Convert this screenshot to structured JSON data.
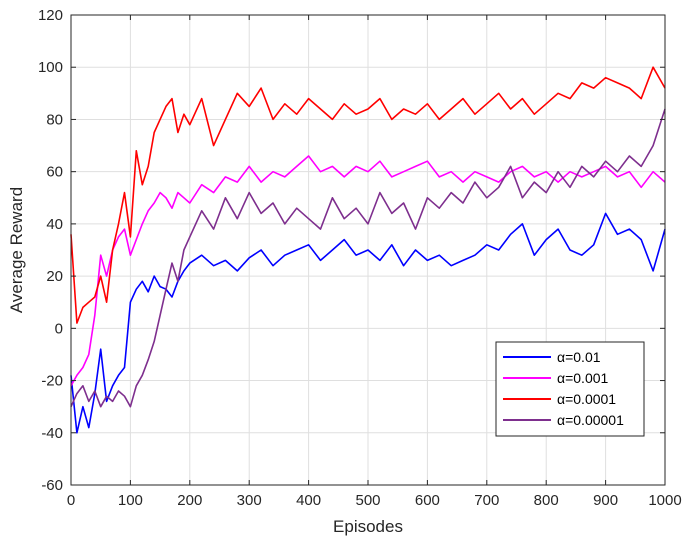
{
  "chart_data": {
    "type": "line",
    "xlabel": "Episodes",
    "ylabel": "Average Reward",
    "xlim": [
      0,
      1000
    ],
    "ylim": [
      -60,
      120
    ],
    "xticks": [
      0,
      100,
      200,
      300,
      400,
      500,
      600,
      700,
      800,
      900,
      1000
    ],
    "yticks": [
      -60,
      -40,
      -20,
      0,
      20,
      40,
      60,
      80,
      100,
      120
    ],
    "grid": true,
    "legend_position": "bottom-right",
    "series": [
      {
        "name": "α=0.01",
        "color": "#0000ff",
        "x": [
          0,
          10,
          20,
          30,
          40,
          50,
          60,
          70,
          80,
          90,
          100,
          110,
          120,
          130,
          140,
          150,
          160,
          170,
          180,
          190,
          200,
          220,
          240,
          260,
          280,
          300,
          320,
          340,
          360,
          380,
          400,
          420,
          440,
          460,
          480,
          500,
          520,
          540,
          560,
          580,
          600,
          620,
          640,
          660,
          680,
          700,
          720,
          740,
          760,
          780,
          800,
          820,
          840,
          860,
          880,
          900,
          920,
          940,
          960,
          980,
          1000
        ],
        "y": [
          -18,
          -40,
          -30,
          -38,
          -25,
          -8,
          -28,
          -22,
          -18,
          -15,
          10,
          15,
          18,
          14,
          20,
          16,
          15,
          12,
          18,
          22,
          25,
          28,
          24,
          26,
          22,
          27,
          30,
          24,
          28,
          30,
          32,
          26,
          30,
          34,
          28,
          30,
          26,
          32,
          24,
          30,
          26,
          28,
          24,
          26,
          28,
          32,
          30,
          36,
          40,
          28,
          34,
          38,
          30,
          28,
          32,
          44,
          36,
          38,
          34,
          22,
          38
        ]
      },
      {
        "name": "α=0.001",
        "color": "#ff00ff",
        "x": [
          0,
          10,
          20,
          30,
          40,
          50,
          60,
          70,
          80,
          90,
          100,
          110,
          120,
          130,
          140,
          150,
          160,
          170,
          180,
          190,
          200,
          220,
          240,
          260,
          280,
          300,
          320,
          340,
          360,
          380,
          400,
          420,
          440,
          460,
          480,
          500,
          520,
          540,
          560,
          580,
          600,
          620,
          640,
          660,
          680,
          700,
          720,
          740,
          760,
          780,
          800,
          820,
          840,
          860,
          880,
          900,
          920,
          940,
          960,
          980,
          1000
        ],
        "y": [
          -22,
          -18,
          -15,
          -10,
          5,
          28,
          20,
          30,
          35,
          38,
          28,
          34,
          40,
          45,
          48,
          52,
          50,
          46,
          52,
          50,
          48,
          55,
          52,
          58,
          56,
          62,
          56,
          60,
          58,
          62,
          66,
          60,
          62,
          58,
          62,
          60,
          64,
          58,
          60,
          62,
          64,
          58,
          60,
          56,
          60,
          58,
          56,
          60,
          62,
          58,
          60,
          56,
          60,
          58,
          60,
          62,
          58,
          60,
          54,
          60,
          56
        ]
      },
      {
        "name": "α=0.0001",
        "color": "#ff0000",
        "x": [
          0,
          10,
          20,
          30,
          40,
          50,
          60,
          70,
          80,
          90,
          100,
          110,
          120,
          130,
          140,
          150,
          160,
          170,
          180,
          190,
          200,
          220,
          240,
          260,
          280,
          300,
          320,
          340,
          360,
          380,
          400,
          420,
          440,
          460,
          480,
          500,
          520,
          540,
          560,
          580,
          600,
          620,
          640,
          660,
          680,
          700,
          720,
          740,
          760,
          780,
          800,
          820,
          840,
          860,
          880,
          900,
          920,
          940,
          960,
          980,
          1000
        ],
        "y": [
          36,
          2,
          8,
          10,
          12,
          20,
          10,
          30,
          40,
          52,
          35,
          68,
          55,
          62,
          75,
          80,
          85,
          88,
          75,
          82,
          78,
          88,
          70,
          80,
          90,
          85,
          92,
          80,
          86,
          82,
          88,
          84,
          80,
          86,
          82,
          84,
          88,
          80,
          84,
          82,
          86,
          80,
          84,
          88,
          82,
          86,
          90,
          84,
          88,
          82,
          86,
          90,
          88,
          94,
          92,
          96,
          94,
          92,
          88,
          100,
          92
        ]
      },
      {
        "name": "α=0.00001",
        "color": "#7e2f8e",
        "x": [
          0,
          10,
          20,
          30,
          40,
          50,
          60,
          70,
          80,
          90,
          100,
          110,
          120,
          130,
          140,
          150,
          160,
          170,
          180,
          190,
          200,
          220,
          240,
          260,
          280,
          300,
          320,
          340,
          360,
          380,
          400,
          420,
          440,
          460,
          480,
          500,
          520,
          540,
          560,
          580,
          600,
          620,
          640,
          660,
          680,
          700,
          720,
          740,
          760,
          780,
          800,
          820,
          840,
          860,
          880,
          900,
          920,
          940,
          960,
          980,
          1000
        ],
        "y": [
          -30,
          -25,
          -22,
          -28,
          -24,
          -30,
          -26,
          -28,
          -24,
          -26,
          -30,
          -22,
          -18,
          -12,
          -5,
          5,
          15,
          25,
          18,
          30,
          35,
          45,
          38,
          50,
          42,
          52,
          44,
          48,
          40,
          46,
          42,
          38,
          50,
          42,
          46,
          40,
          52,
          44,
          48,
          38,
          50,
          46,
          52,
          48,
          56,
          50,
          54,
          62,
          50,
          56,
          52,
          60,
          54,
          62,
          58,
          64,
          60,
          66,
          62,
          70,
          84
        ]
      }
    ]
  }
}
